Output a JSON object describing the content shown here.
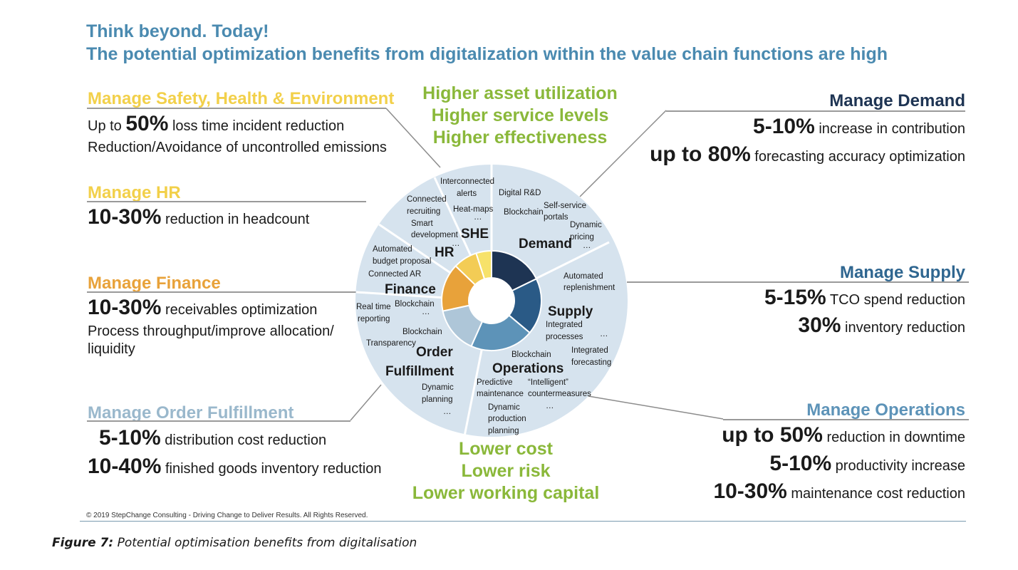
{
  "title_line1": "Think beyond. Today!",
  "title_line2": "The potential optimization benefits from digitalization within the value chain functions are high",
  "top_benefits": [
    "Higher asset utilization",
    "Higher service levels",
    "Higher effectiveness"
  ],
  "bottom_benefits": [
    "Lower cost",
    "Lower risk",
    "Lower working capital"
  ],
  "left_panels": {
    "she": {
      "header": "Manage Safety, Health & Environment",
      "header_color": "#f2d04a",
      "l1_pre": "Up to ",
      "l1_big": "50%",
      "l1_post": " loss time incident reduction",
      "l2": "Reduction/Avoidance of uncontrolled emissions"
    },
    "hr": {
      "header": "Manage HR",
      "header_color": "#f2d04a",
      "l1_big": "10-30%",
      "l1_post": " reduction in headcount"
    },
    "finance": {
      "header": "Manage Finance",
      "header_color": "#e8a23a",
      "l1_big": "10-30%",
      "l1_post": " receivables  optimization",
      "l2": "Process throughput/improve allocation/",
      "l3": "liquidity"
    },
    "order": {
      "header": "Manage Order Fulfillment",
      "header_color": "#9ab8cc",
      "l1_big": "5-10%",
      "l1_post": " distribution cost reduction",
      "l2_big": "10-40%",
      "l2_post": " finished goods inventory reduction"
    }
  },
  "right_panels": {
    "demand": {
      "header": "Manage Demand",
      "header_color": "#1e3453",
      "l1_big": "5-10%",
      "l1_post": " increase in contribution",
      "l2_big": "up to 80%",
      "l2_post": " forecasting accuracy optimization"
    },
    "supply": {
      "header": "Manage Supply",
      "header_color": "#2f6690",
      "l1_big": "5-15%",
      "l1_post": " TCO spend reduction",
      "l2_big": "30%",
      "l2_post": " inventory reduction"
    },
    "operations": {
      "header": "Manage Operations",
      "header_color": "#5d93b8",
      "l1_big": "up to 50%",
      "l1_post": " reduction in downtime",
      "l2_big": "5-10%",
      "l2_post": " productivity increase",
      "l3_big": "10-30%",
      "l3_post": " maintenance cost reduction"
    }
  },
  "wheel": {
    "segment_colors": [
      "#1e3453",
      "#2a5a86",
      "#5d93b8",
      "#aec6d8",
      "#e8a23a",
      "#f3cc55",
      "#f7e26a"
    ],
    "outer_color": "#d6e3ee",
    "sections": {
      "she": "SHE",
      "demand": "Demand",
      "hr": "HR",
      "finance": "Finance",
      "supply": "Supply",
      "order1": "Order",
      "order2": "Fulfillment",
      "operations": "Operations"
    },
    "items": {
      "interconnected1": "Interconnected",
      "interconnected2": "alerts",
      "heatmaps": "Heat-maps",
      "digital_rd": "Digital R&D",
      "blockchain_demand": "Blockchain",
      "self_service1": "Self-service",
      "self_service2": "portals",
      "dynamic_pricing1": "Dynamic",
      "dynamic_pricing2": "pricing",
      "connected_recruiting1": "Connected",
      "connected_recruiting2": "recruiting",
      "smart_dev1": "Smart",
      "smart_dev2": "development",
      "auto_budget1": "Automated",
      "auto_budget2": "budget proposal",
      "connected_ar": "Connected AR",
      "auto_replen1": "Automated",
      "auto_replen2": "replenishment",
      "real_time1": "Real time",
      "real_time2": "reporting",
      "blockchain_fin": "Blockchain",
      "integrated_proc1": "Integrated",
      "integrated_proc2": "processes",
      "blockchain_order": "Blockchain",
      "transparency": "Transparency",
      "integrated_fc1": "Integrated",
      "integrated_fc2": "forecasting",
      "blockchain_ops": "Blockchain",
      "predictive1": "Predictive",
      "predictive2": "maintenance",
      "intelligent1": "“Intelligent”",
      "intelligent2": "countermeasures",
      "dyn_planning1": "Dynamic",
      "dyn_planning2": "planning",
      "dyn_prod1": "Dynamic",
      "dyn_prod2": "production",
      "dyn_prod3": "planning",
      "ellipsis": "…"
    }
  },
  "footnote": "© 2019 StepChange Consulting - Driving Change to Deliver Results. All Rights Reserved.",
  "caption_label": "Figure 7:",
  "caption_text": " Potential optimisation benefits from digitalisation"
}
